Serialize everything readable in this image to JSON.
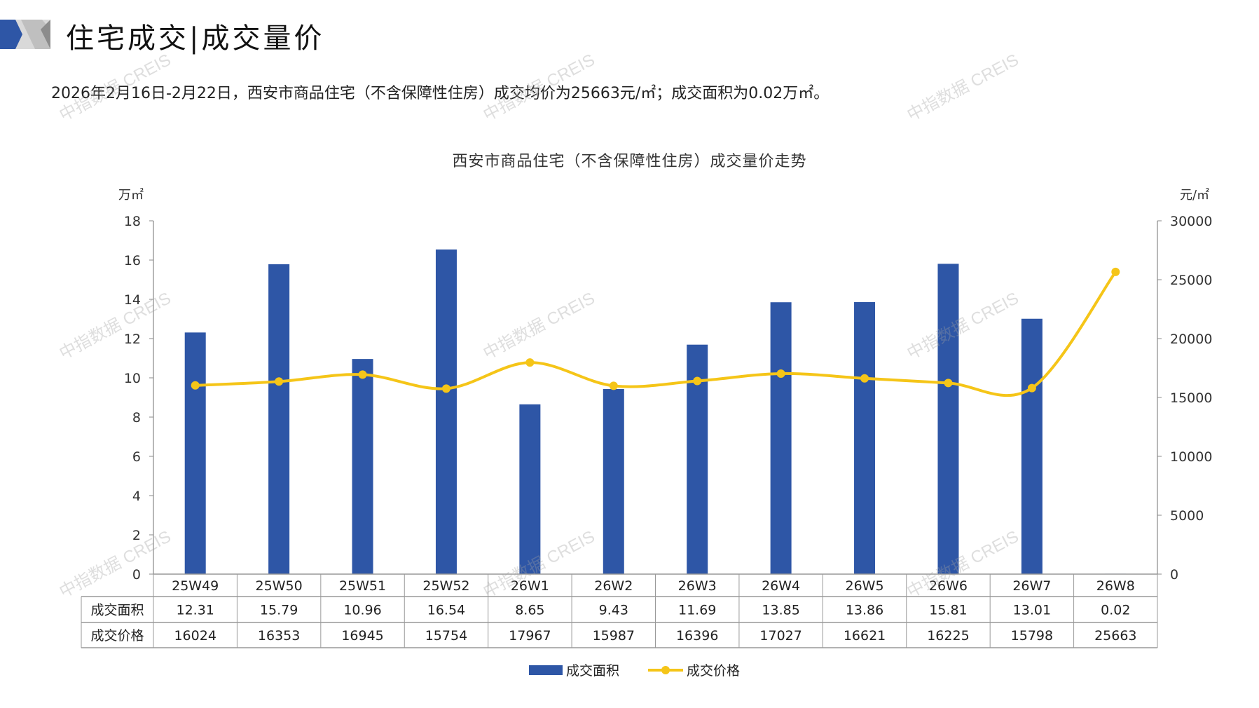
{
  "header": {
    "title": "住宅成交|成交量价"
  },
  "summary": "2026年2月16日-2月22日，西安市商品住宅（不含保障性住房）成交均价为25663元/㎡；成交面积为0.02万㎡。",
  "watermark": "中指数据 CREIS",
  "colors": {
    "bar": "#2E56A6",
    "line": "#F5C518",
    "axis": "#888888"
  },
  "chart_data": {
    "type": "bar+line",
    "title": "西安市商品住宅（不含保障性住房）成交量价走势",
    "ylabel_left": "万㎡",
    "ylabel_right": "元/㎡",
    "ylim_left": [
      0,
      18
    ],
    "yticks_left": [
      "0",
      "2",
      "4",
      "6",
      "8",
      "10",
      "12",
      "14",
      "16",
      "18"
    ],
    "ylim_right": [
      0,
      30000
    ],
    "yticks_right": [
      "0",
      "5000",
      "10000",
      "15000",
      "20000",
      "25000",
      "30000"
    ],
    "categories": [
      "25W49",
      "25W50",
      "25W51",
      "25W52",
      "26W1",
      "26W2",
      "26W3",
      "26W4",
      "26W5",
      "26W6",
      "26W7",
      "26W8"
    ],
    "series": [
      {
        "name": "成交面积",
        "type": "bar",
        "axis": "left",
        "values": [
          12.31,
          15.79,
          10.96,
          16.54,
          8.65,
          9.43,
          11.69,
          13.85,
          13.86,
          15.81,
          13.01,
          0.02
        ],
        "labels": [
          "12.31",
          "15.79",
          "10.96",
          "16.54",
          "8.65",
          "9.43",
          "11.69",
          "13.85",
          "13.86",
          "15.81",
          "13.01",
          "0.02"
        ]
      },
      {
        "name": "成交价格",
        "type": "line",
        "axis": "right",
        "values": [
          16024,
          16353,
          16945,
          15754,
          17967,
          15987,
          16396,
          17027,
          16621,
          16225,
          15798,
          25663
        ],
        "labels": [
          "16024",
          "16353",
          "16945",
          "15754",
          "17967",
          "15987",
          "16396",
          "17027",
          "16621",
          "16225",
          "15798",
          "25663"
        ]
      }
    ],
    "legend": "bottom",
    "grid": false
  }
}
